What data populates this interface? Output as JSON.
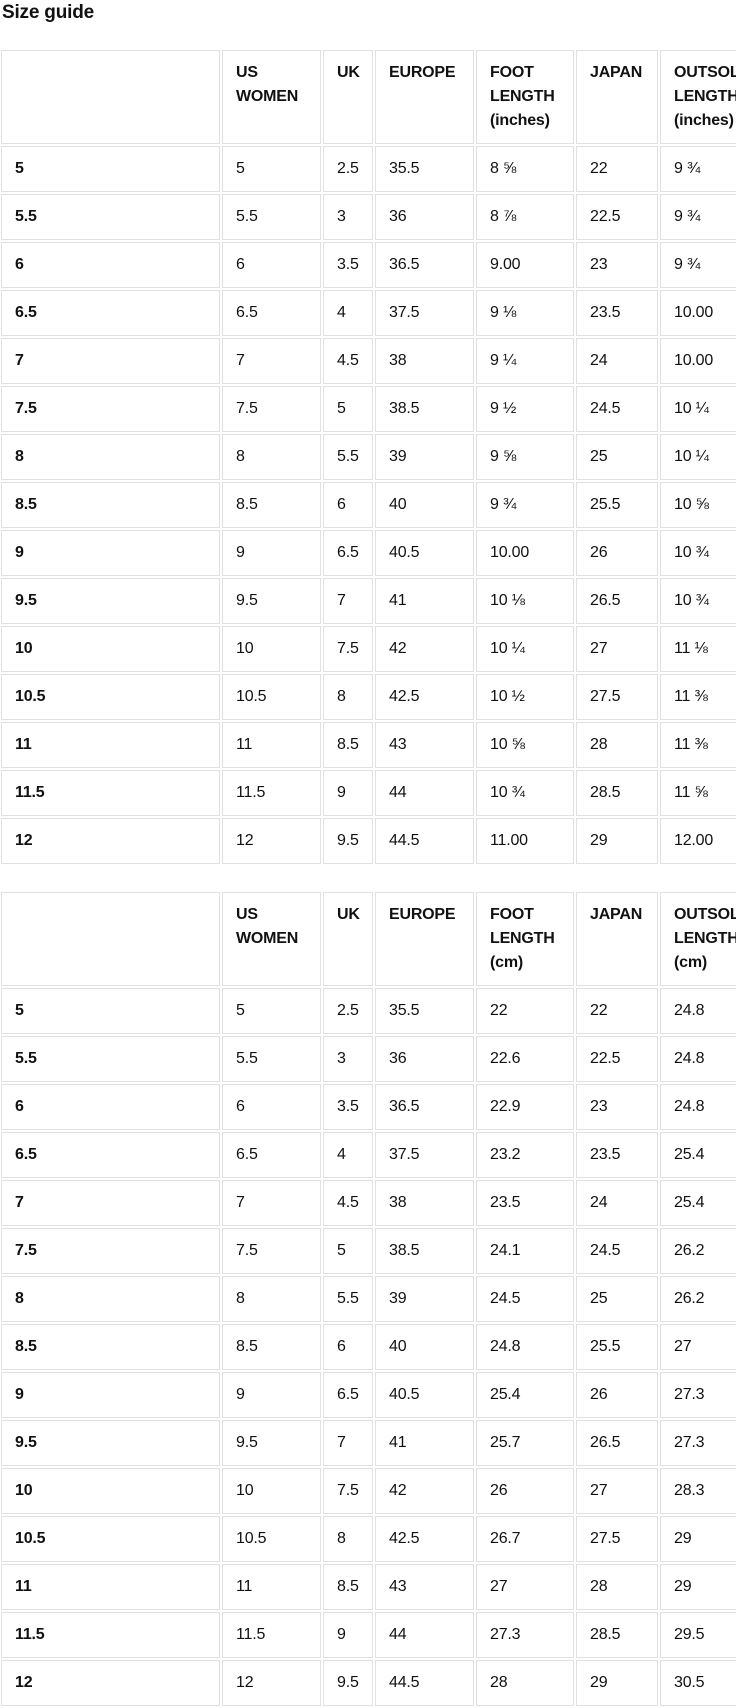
{
  "page": {
    "title": "Size guide"
  },
  "colors": {
    "border": "#e1e1e1",
    "text": "#111111",
    "background": "#ffffff"
  },
  "tables": [
    {
      "name": "size-chart-inches",
      "headers": [
        "",
        "US WOMEN",
        "UK",
        "EUROPE",
        "FOOT LENGTH (inches)",
        "JAPAN",
        "OUTSOLE LENGTH (inches)"
      ],
      "rows": [
        [
          "5",
          "5",
          "2.5",
          "35.5",
          "8 ⅝",
          "22",
          "9 ¾"
        ],
        [
          "5.5",
          "5.5",
          "3",
          "36",
          "8 ⅞",
          "22.5",
          "9 ¾"
        ],
        [
          "6",
          "6",
          "3.5",
          "36.5",
          "9.00",
          "23",
          "9 ¾"
        ],
        [
          "6.5",
          "6.5",
          "4",
          "37.5",
          "9 ⅛",
          "23.5",
          "10.00"
        ],
        [
          "7",
          "7",
          "4.5",
          "38",
          "9 ¼",
          "24",
          "10.00"
        ],
        [
          "7.5",
          "7.5",
          "5",
          "38.5",
          "9 ½",
          "24.5",
          "10 ¼"
        ],
        [
          "8",
          "8",
          "5.5",
          "39",
          "9 ⅝",
          "25",
          "10 ¼"
        ],
        [
          "8.5",
          "8.5",
          "6",
          "40",
          "9 ¾",
          "25.5",
          "10 ⅝"
        ],
        [
          "9",
          "9",
          "6.5",
          "40.5",
          "10.00",
          "26",
          "10 ¾"
        ],
        [
          "9.5",
          "9.5",
          "7",
          "41",
          "10 ⅛",
          "26.5",
          "10 ¾"
        ],
        [
          "10",
          "10",
          "7.5",
          "42",
          "10 ¼",
          "27",
          "11 ⅛"
        ],
        [
          "10.5",
          "10.5",
          "8",
          "42.5",
          "10 ½",
          "27.5",
          "11 ⅜"
        ],
        [
          "11",
          "11",
          "8.5",
          "43",
          "10 ⅝",
          "28",
          "11 ⅜"
        ],
        [
          "11.5",
          "11.5",
          "9",
          "44",
          "10 ¾",
          "28.5",
          "11 ⅝"
        ],
        [
          "12",
          "12",
          "9.5",
          "44.5",
          "11.00",
          "29",
          "12.00"
        ]
      ]
    },
    {
      "name": "size-chart-cm",
      "headers": [
        "",
        "US WOMEN",
        "UK",
        "EUROPE",
        "FOOT LENGTH (cm)",
        "JAPAN",
        "OUTSOLE LENGTH (cm)"
      ],
      "rows": [
        [
          "5",
          "5",
          "2.5",
          "35.5",
          "22",
          "22",
          "24.8"
        ],
        [
          "5.5",
          "5.5",
          "3",
          "36",
          "22.6",
          "22.5",
          "24.8"
        ],
        [
          "6",
          "6",
          "3.5",
          "36.5",
          "22.9",
          "23",
          "24.8"
        ],
        [
          "6.5",
          "6.5",
          "4",
          "37.5",
          "23.2",
          "23.5",
          "25.4"
        ],
        [
          "7",
          "7",
          "4.5",
          "38",
          "23.5",
          "24",
          "25.4"
        ],
        [
          "7.5",
          "7.5",
          "5",
          "38.5",
          "24.1",
          "24.5",
          "26.2"
        ],
        [
          "8",
          "8",
          "5.5",
          "39",
          "24.5",
          "25",
          "26.2"
        ],
        [
          "8.5",
          "8.5",
          "6",
          "40",
          "24.8",
          "25.5",
          "27"
        ],
        [
          "9",
          "9",
          "6.5",
          "40.5",
          "25.4",
          "26",
          "27.3"
        ],
        [
          "9.5",
          "9.5",
          "7",
          "41",
          "25.7",
          "26.5",
          "27.3"
        ],
        [
          "10",
          "10",
          "7.5",
          "42",
          "26",
          "27",
          "28.3"
        ],
        [
          "10.5",
          "10.5",
          "8",
          "42.5",
          "26.7",
          "27.5",
          "29"
        ],
        [
          "11",
          "11",
          "8.5",
          "43",
          "27",
          "28",
          "29"
        ],
        [
          "11.5",
          "11.5",
          "9",
          "44",
          "27.3",
          "28.5",
          "29.5"
        ],
        [
          "12",
          "12",
          "9.5",
          "44.5",
          "28",
          "29",
          "30.5"
        ]
      ]
    }
  ]
}
